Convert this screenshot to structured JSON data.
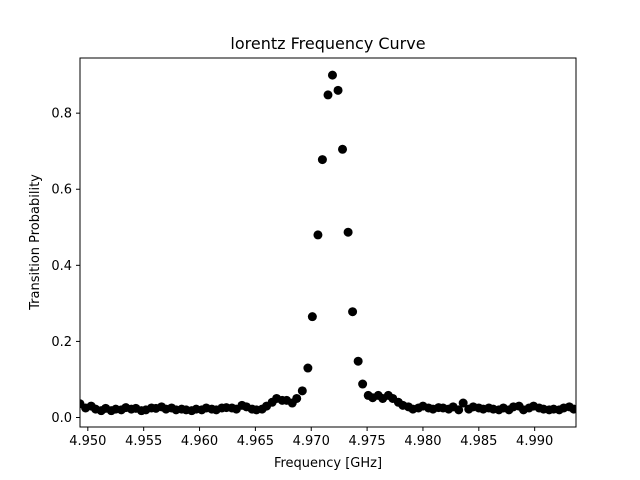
{
  "chart_data": {
    "type": "scatter",
    "title": "lorentz Frequency Curve",
    "xlabel": "Frequency [GHz]",
    "ylabel": "Transition Probability",
    "xlim": [
      4.9493,
      4.9937
    ],
    "ylim": [
      -0.025,
      0.945
    ],
    "xticks": [
      "4.950",
      "4.955",
      "4.960",
      "4.965",
      "4.970",
      "4.975",
      "4.980",
      "4.985",
      "4.990"
    ],
    "yticks": [
      "0.0",
      "0.2",
      "0.4",
      "0.6",
      "0.8"
    ],
    "grid": false,
    "marker_color": "#000000",
    "series": [
      {
        "x": [
          4.9493,
          4.9498,
          4.9503,
          4.9507,
          4.9512,
          4.9516,
          4.9521,
          4.9525,
          4.953,
          4.9534,
          4.9539,
          4.9543,
          4.9548,
          4.9552,
          4.9557,
          4.9561,
          4.9566,
          4.957,
          4.9575,
          4.9579,
          4.9584,
          4.9588,
          4.9593,
          4.9597,
          4.9602,
          4.9606,
          4.9611,
          4.9615,
          4.962,
          4.9624,
          4.9629,
          4.9633,
          4.9638,
          4.9642,
          4.9647,
          4.9651,
          4.9656,
          4.966,
          4.9665,
          4.9669,
          4.9674,
          4.9678,
          4.9683,
          4.9687,
          4.9692,
          4.9697,
          4.9701,
          4.9706,
          4.971,
          4.9715,
          4.9719,
          4.9724,
          4.9728,
          4.9733,
          4.9737,
          4.9742,
          4.9746,
          4.9751,
          4.9755,
          4.976,
          4.9764,
          4.9769,
          4.9773,
          4.9778,
          4.9782,
          4.9787,
          4.9791,
          4.9796,
          4.98,
          4.9805,
          4.9809,
          4.9814,
          4.9818,
          4.9823,
          4.9827,
          4.9832,
          4.9836,
          4.9841,
          4.9845,
          4.985,
          4.9854,
          4.9859,
          4.9863,
          4.9868,
          4.9872,
          4.9877,
          4.9881,
          4.9886,
          4.989,
          4.9895,
          4.9899,
          4.9904,
          4.9908,
          4.9913,
          4.9917,
          4.9922,
          4.9926,
          4.9931,
          4.9935
        ],
        "y": [
          0.036,
          0.025,
          0.03,
          0.022,
          0.018,
          0.024,
          0.018,
          0.022,
          0.02,
          0.026,
          0.022,
          0.024,
          0.018,
          0.02,
          0.025,
          0.024,
          0.028,
          0.022,
          0.025,
          0.02,
          0.022,
          0.02,
          0.018,
          0.022,
          0.02,
          0.025,
          0.022,
          0.02,
          0.025,
          0.026,
          0.025,
          0.022,
          0.032,
          0.028,
          0.022,
          0.02,
          0.022,
          0.03,
          0.04,
          0.05,
          0.045,
          0.045,
          0.038,
          0.05,
          0.07,
          0.13,
          0.265,
          0.48,
          0.678,
          0.848,
          0.9,
          0.86,
          0.705,
          0.487,
          0.278,
          0.148,
          0.088,
          0.058,
          0.052,
          0.058,
          0.05,
          0.058,
          0.05,
          0.04,
          0.032,
          0.028,
          0.022,
          0.025,
          0.03,
          0.025,
          0.022,
          0.026,
          0.025,
          0.022,
          0.028,
          0.02,
          0.038,
          0.022,
          0.028,
          0.025,
          0.022,
          0.025,
          0.022,
          0.02,
          0.025,
          0.02,
          0.028,
          0.03,
          0.02,
          0.025,
          0.03,
          0.025,
          0.022,
          0.02,
          0.022,
          0.02,
          0.025,
          0.028,
          0.022
        ]
      }
    ]
  }
}
